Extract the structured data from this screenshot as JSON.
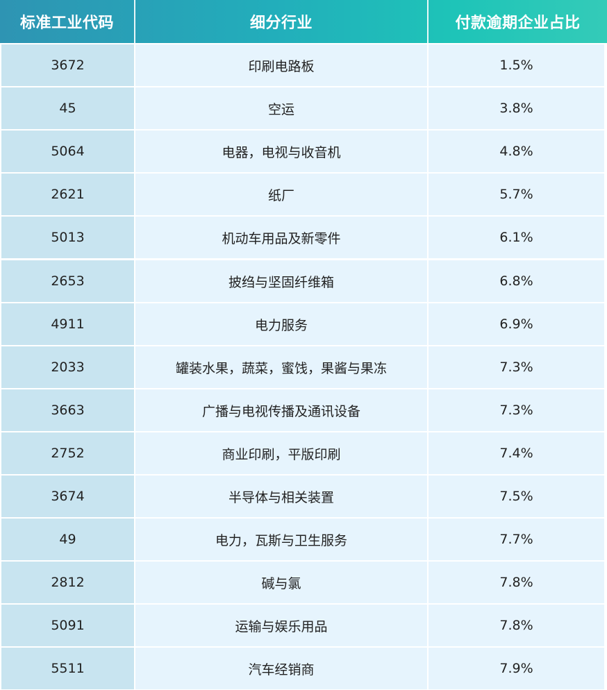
{
  "table": {
    "headers": [
      "标准工业代码",
      "细分行业",
      "付款逾期企业占比"
    ],
    "rows": [
      [
        "3672",
        "印刷电路板",
        "1.5%"
      ],
      [
        "45",
        "空运",
        "3.8%"
      ],
      [
        "5064",
        "电器，电视与收音机",
        "4.8%"
      ],
      [
        "2621",
        "纸厂",
        "5.7%"
      ],
      [
        "5013",
        "机动车用品及新零件",
        "6.1%"
      ],
      [
        "2653",
        "披绉与坚固纤维箱",
        "6.8%"
      ],
      [
        "4911",
        "电力服务",
        "6.9%"
      ],
      [
        "2033",
        "罐装水果，蔬菜，蜜饯，果酱与果冻",
        "7.3%"
      ],
      [
        "3663",
        "广播与电视传播及通讯设备",
        "7.3%"
      ],
      [
        "2752",
        "商业印刷，平版印刷",
        "7.4%"
      ],
      [
        "3674",
        "半导体与相关装置",
        "7.5%"
      ],
      [
        "49",
        "电力，瓦斯与卫生服务",
        "7.7%"
      ],
      [
        "2812",
        "碱与氯",
        "7.8%"
      ],
      [
        "5091",
        "运输与娱乐用品",
        "7.8%"
      ],
      [
        "5511",
        "汽车经销商",
        "7.9%"
      ]
    ]
  },
  "colors": {
    "header_gradient_start": "#2e94b3",
    "header_gradient_end": "#34cbb8",
    "first_column_fill": "#c8e4f0",
    "other_columns_fill": "#e6f4fd",
    "text": "#222222"
  }
}
